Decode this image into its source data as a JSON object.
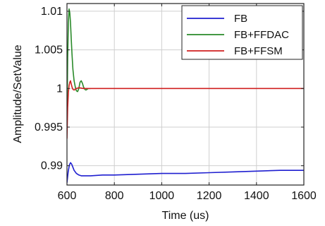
{
  "chart_data": {
    "type": "line",
    "title": "",
    "xlabel": "Time (us)",
    "ylabel": "Amplitude/SetValue",
    "xlim": [
      600,
      1600
    ],
    "ylim": [
      0.9875,
      1.011
    ],
    "x_ticks": [
      600,
      800,
      1000,
      1200,
      1400,
      1600
    ],
    "x_tick_labels": [
      "600",
      "800",
      "1000",
      "1200",
      "1400",
      "1600"
    ],
    "y_ticks": [
      0.99,
      0.995,
      1.0,
      1.005,
      1.01
    ],
    "y_tick_labels": [
      "0.99",
      "0.995",
      "1",
      "1.005",
      "1.01"
    ],
    "grid": true,
    "legend_position": "top-right",
    "series": [
      {
        "name": "FB",
        "color": "#1f1fd0",
        "x": [
          600,
          605,
          610,
          615,
          620,
          625,
          630,
          640,
          650,
          660,
          680,
          700,
          750,
          800,
          900,
          1000,
          1100,
          1200,
          1300,
          1400,
          1500,
          1600
        ],
        "y": [
          0.9878,
          0.9892,
          0.9901,
          0.9904,
          0.9902,
          0.9898,
          0.9894,
          0.989,
          0.9888,
          0.9887,
          0.9887,
          0.9887,
          0.9888,
          0.9888,
          0.9889,
          0.989,
          0.989,
          0.9891,
          0.9892,
          0.9893,
          0.9894,
          0.9894
        ]
      },
      {
        "name": "FB+FFDAC",
        "color": "#2a8a2a",
        "x": [
          600,
          603,
          606,
          609,
          612,
          615,
          618,
          621,
          625,
          630,
          635,
          640,
          645,
          650,
          655,
          660,
          665,
          670,
          675,
          680,
          690,
          700
        ],
        "y": [
          0.9955,
          1.004,
          1.0085,
          1.0103,
          1.0098,
          1.0085,
          1.0065,
          1.0045,
          1.0025,
          1.001,
          1.0002,
          0.9997,
          0.9996,
          1.0,
          1.0008,
          1.001,
          1.0007,
          1.0002,
          0.9999,
          0.9998,
          1.0,
          1.0
        ]
      },
      {
        "name": "FB+FFSM",
        "color": "#d02020",
        "x": [
          600,
          603,
          606,
          609,
          612,
          615,
          618,
          621,
          625,
          630,
          640,
          650,
          670,
          700,
          800,
          900,
          1000,
          1100,
          1200,
          1300,
          1400,
          1500,
          1600
        ],
        "y": [
          0.9935,
          0.9975,
          0.9995,
          1.0004,
          1.0008,
          1.001,
          1.0006,
          1.0002,
          0.9999,
          0.9998,
          1.0,
          1.0001,
          1.0,
          1.0,
          1.0,
          1.0,
          1.0,
          1.0,
          1.0,
          1.0,
          1.0,
          1.0,
          1.0
        ]
      }
    ]
  }
}
